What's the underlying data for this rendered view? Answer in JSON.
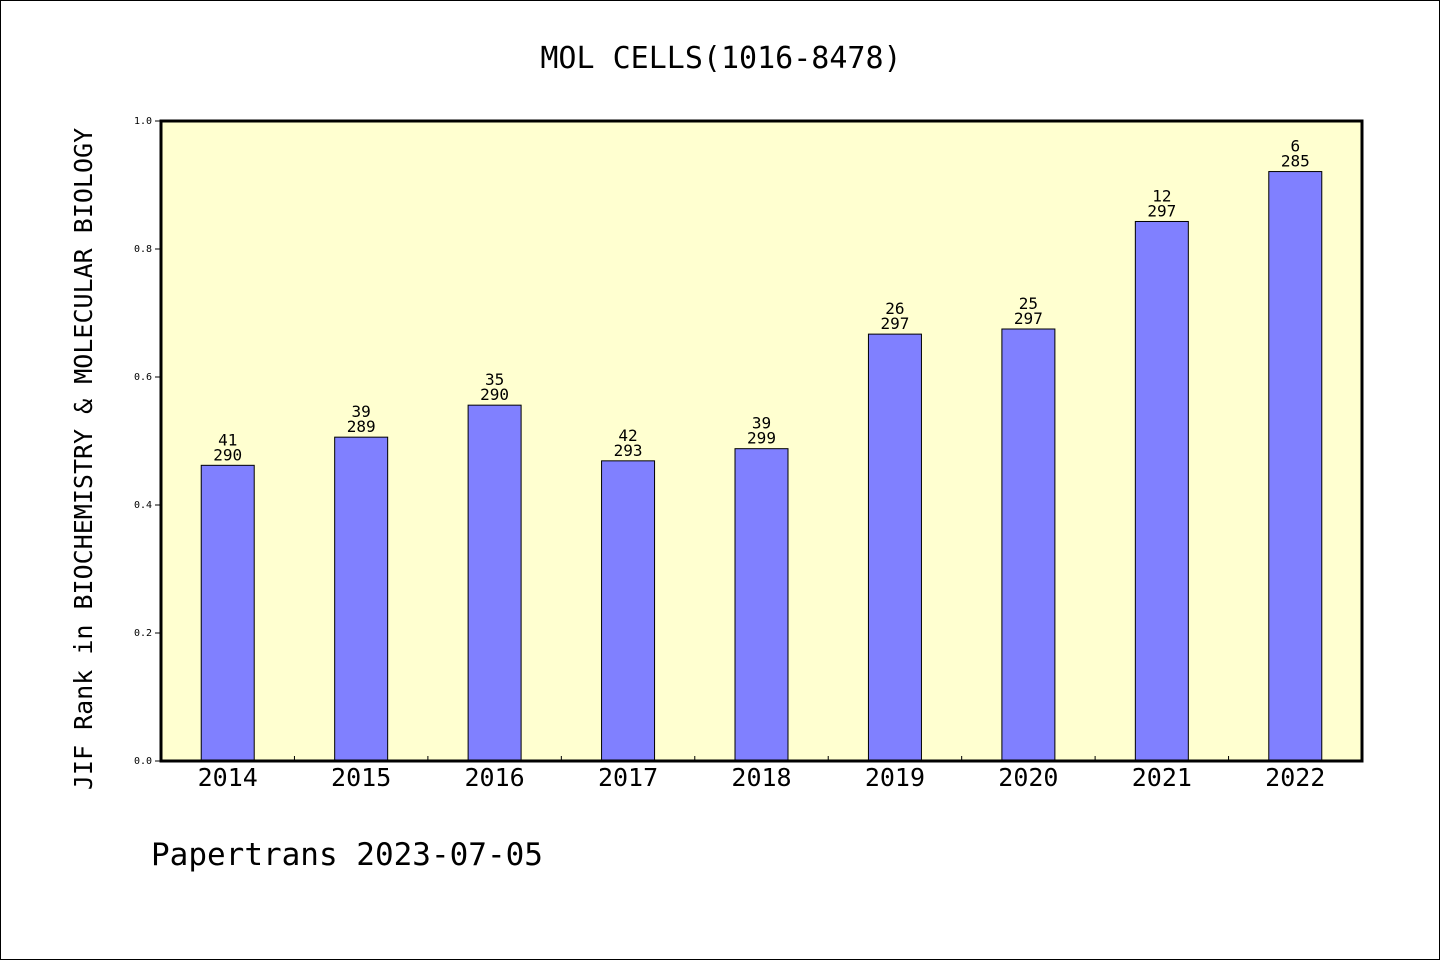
{
  "footer": "Papertrans 2023-07-05",
  "chart_data": {
    "type": "bar",
    "title": "MOL CELLS(1016-8478)",
    "xlabel": "",
    "ylabel": "JIF Rank in BIOCHEMISTRY & MOLECULAR BIOLOGY",
    "ylim": [
      0.0,
      1.0
    ],
    "yticks": [
      "0.0",
      "0.2",
      "0.4",
      "0.6",
      "0.8",
      "1.0"
    ],
    "grid": false,
    "categories": [
      "2014",
      "2015",
      "2016",
      "2017",
      "2018",
      "2019",
      "2020",
      "2021",
      "2022"
    ],
    "values": [
      0.462,
      0.506,
      0.556,
      0.469,
      0.488,
      0.667,
      0.675,
      0.843,
      0.921
    ],
    "rank": [
      "41",
      "39",
      "35",
      "42",
      "39",
      "26",
      "25",
      "12",
      "6"
    ],
    "total": [
      "290",
      "289",
      "290",
      "293",
      "299",
      "297",
      "297",
      "297",
      "285"
    ],
    "colors": {
      "bar": "#8080ff",
      "plot_background": "#ffffd0",
      "axis": "#000000"
    }
  }
}
